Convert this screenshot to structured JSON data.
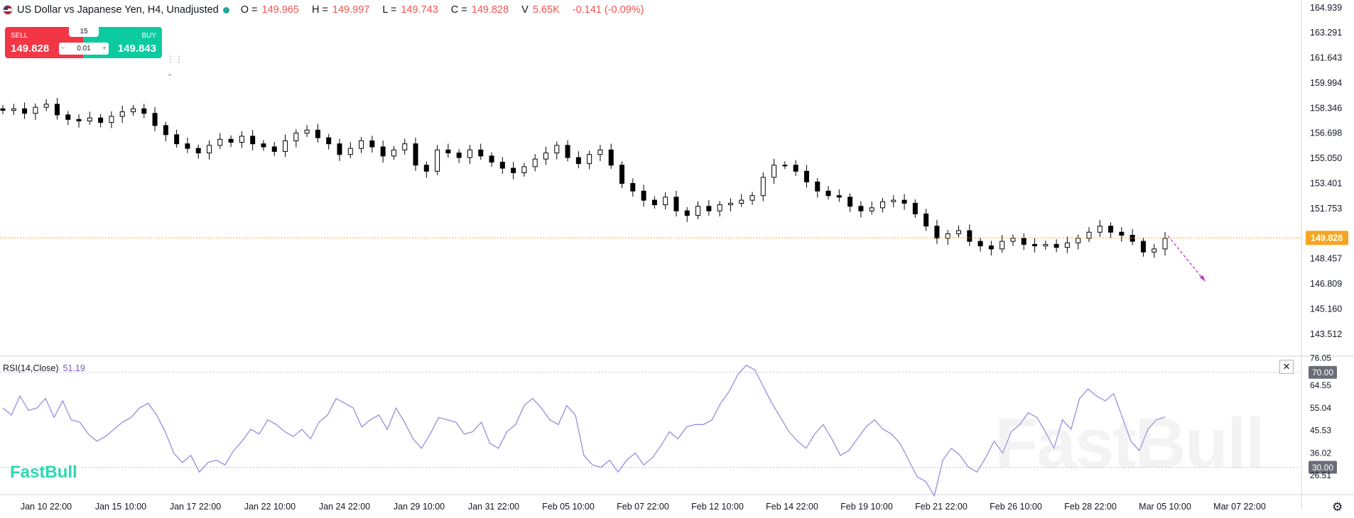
{
  "legend": {
    "symbol": "US Dollar vs Japanese Yen, H4, Unadjusted",
    "open_label": "O =",
    "open": "149.965",
    "high_label": "H =",
    "high": "149.997",
    "low_label": "L =",
    "low": "149.743",
    "close_label": "C =",
    "close": "149.828",
    "volume_label": "V",
    "volume": "5.65K",
    "change": "-0.141 (-0.09%)"
  },
  "trade": {
    "sell_label": "SELL",
    "sell_price": "149.828",
    "buy_label": "BUY",
    "buy_price": "149.843",
    "spread": "15",
    "quantity": "0.01",
    "minus": "−",
    "plus": "+"
  },
  "colors": {
    "up": "#ffffff",
    "down": "#000000",
    "current_price": "#f5a623",
    "rsi": "#9c8ae0",
    "sell": "#f23645",
    "buy": "#0ccba0"
  },
  "chart_data": [
    {
      "type": "candlestick",
      "symbol": "USDJPY",
      "timeframe": "H4",
      "ylim": [
        142.2,
        165.3
      ],
      "y_ticks": [
        "164.939",
        "163.291",
        "161.643",
        "159.994",
        "158.346",
        "156.698",
        "155.050",
        "153.401",
        "151.753",
        "149.828",
        "148.457",
        "146.809",
        "145.160",
        "143.512"
      ],
      "x_ticks": [
        "Jan 10 22:00",
        "Jan 15 10:00",
        "Jan 17 22:00",
        "Jan 22 10:00",
        "Jan 24 22:00",
        "Jan 29 10:00",
        "Jan 31 22:00",
        "Feb 05 10:00",
        "Feb 07 22:00",
        "Feb 12 10:00",
        "Feb 14 22:00",
        "Feb 19 10:00",
        "Feb 21 22:00",
        "Feb 26 10:00",
        "Feb 28 22:00",
        "Mar 05 10:00",
        "Mar 07 22:00"
      ],
      "current_price": 149.828,
      "current_price_label": "149.828",
      "close_series": [
        158.2,
        158.3,
        158.0,
        158.4,
        158.6,
        157.9,
        157.6,
        157.5,
        157.7,
        157.4,
        157.8,
        158.1,
        158.3,
        158.0,
        157.2,
        156.6,
        156.0,
        155.7,
        155.4,
        155.9,
        156.3,
        156.1,
        156.5,
        156.0,
        155.8,
        155.5,
        156.2,
        156.7,
        156.9,
        156.4,
        156.0,
        155.3,
        155.7,
        156.2,
        155.8,
        155.2,
        155.6,
        156.0,
        154.6,
        154.2,
        155.6,
        155.4,
        155.1,
        155.6,
        155.2,
        154.8,
        154.4,
        154.1,
        154.5,
        155.0,
        155.4,
        155.9,
        155.1,
        154.7,
        155.3,
        155.6,
        154.6,
        153.4,
        152.9,
        152.3,
        152.0,
        152.5,
        151.6,
        151.3,
        151.9,
        151.6,
        152.0,
        152.1,
        152.3,
        152.6,
        153.8,
        154.6,
        154.6,
        154.2,
        153.5,
        152.9,
        152.6,
        152.5,
        151.9,
        151.6,
        151.8,
        152.2,
        152.3,
        152.1,
        151.4,
        150.6,
        149.8,
        150.1,
        150.3,
        149.6,
        149.3,
        149.1,
        149.6,
        149.8,
        149.4,
        149.3,
        149.4,
        149.2,
        149.5,
        149.8,
        150.2,
        150.6,
        150.2,
        150.0,
        149.6,
        148.9,
        149.1,
        149.8
      ],
      "ticks_note": ""
    },
    {
      "type": "line",
      "title": "RSI(14,Close)",
      "last_value_label": "51.19",
      "ylim": [
        18.5,
        76.5
      ],
      "y_ticks": [
        "76.05",
        "70.00",
        "64.55",
        "55.04",
        "45.53",
        "36.02",
        "30.00",
        "26.51"
      ],
      "levels": [
        70,
        30
      ],
      "level_labels": [
        "70.00",
        "30.00"
      ],
      "values": [
        55,
        52,
        60,
        54,
        55,
        59,
        51,
        58,
        50,
        49,
        44,
        41,
        43,
        46,
        49,
        51,
        55,
        57,
        52,
        45,
        36,
        32,
        35,
        28,
        32,
        33,
        31,
        37,
        41,
        46,
        44,
        50,
        48,
        45,
        43,
        46,
        42,
        49,
        52,
        59,
        57,
        55,
        47,
        50,
        52,
        46,
        55,
        49,
        42,
        38,
        44,
        51,
        50,
        49,
        44,
        45,
        49,
        40,
        38,
        45,
        48,
        56,
        59,
        55,
        50,
        48,
        56,
        52,
        35,
        31,
        30,
        33,
        28,
        33,
        36,
        31,
        34,
        39,
        45,
        42,
        47,
        48,
        48,
        50,
        57,
        62,
        69,
        73,
        71,
        64,
        57,
        51,
        45,
        41,
        38,
        44,
        48,
        42,
        35,
        37,
        42,
        47,
        50,
        46,
        44,
        40,
        33,
        26,
        24,
        18,
        33,
        38,
        35,
        30,
        28,
        34,
        41,
        36,
        45,
        48,
        53,
        51,
        45,
        38,
        50,
        46,
        59,
        63,
        60,
        58,
        61,
        51,
        41,
        37,
        46,
        50,
        51.19
      ],
      "brand": "FastBull",
      "watermark": "FastBull"
    }
  ]
}
